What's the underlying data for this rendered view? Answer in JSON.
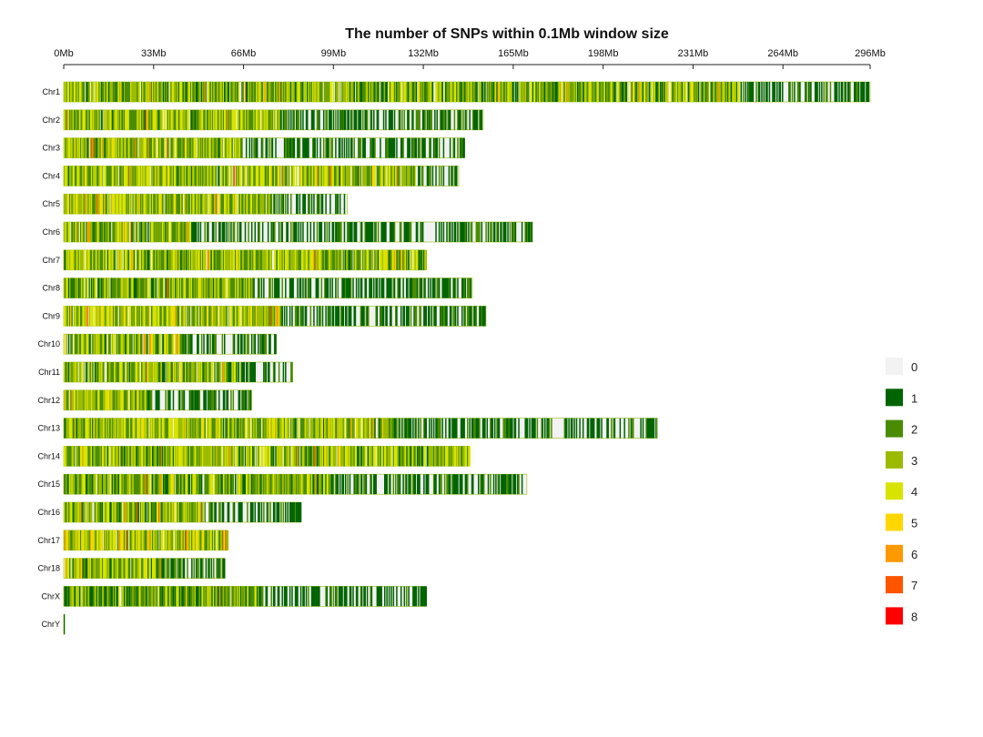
{
  "chart_data": {
    "type": "heatmap",
    "title": "The number of SNPs within 0.1Mb window size",
    "xlabel": "",
    "ylabel": "",
    "x_range_mb": [
      0,
      296
    ],
    "window_size_mb": 0.1,
    "axis_position": "top",
    "x_ticks": [
      {
        "value": 0,
        "label": "0Mb"
      },
      {
        "value": 33,
        "label": "33Mb"
      },
      {
        "value": 66,
        "label": "66Mb"
      },
      {
        "value": 99,
        "label": "99Mb"
      },
      {
        "value": 132,
        "label": "132Mb"
      },
      {
        "value": 165,
        "label": "165Mb"
      },
      {
        "value": 198,
        "label": "198Mb"
      },
      {
        "value": 231,
        "label": "231Mb"
      },
      {
        "value": 264,
        "label": "264Mb"
      },
      {
        "value": 296,
        "label": "296Mb"
      }
    ],
    "legend": {
      "placement": "right",
      "items": [
        {
          "value": 0,
          "label": "0",
          "color": "#f2f2f2"
        },
        {
          "value": 1,
          "label": "1",
          "color": "#006400"
        },
        {
          "value": 2,
          "label": "2",
          "color": "#4a8c00"
        },
        {
          "value": 3,
          "label": "3",
          "color": "#9bbb00"
        },
        {
          "value": 4,
          "label": "4",
          "color": "#d8e400"
        },
        {
          "value": 5,
          "label": "5",
          "color": "#ffd700"
        },
        {
          "value": 6,
          "label": "6",
          "color": "#ff9900"
        },
        {
          "value": 7,
          "label": "7",
          "color": "#ff5500"
        },
        {
          "value": 8,
          "label": "8",
          "color": "#ff0000"
        }
      ]
    },
    "chromosomes": [
      {
        "name": "Chr1",
        "length_mb": 296.0,
        "dense_until_mb": 248.0,
        "mean_density": 2.6
      },
      {
        "name": "Chr2",
        "length_mb": 154.0,
        "dense_until_mb": 79.0,
        "mean_density": 2.9
      },
      {
        "name": "Chr3",
        "length_mb": 147.0,
        "dense_until_mb": 65.0,
        "mean_density": 3.0
      },
      {
        "name": "Chr4",
        "length_mb": 145.0,
        "dense_until_mb": 129.0,
        "mean_density": 3.0
      },
      {
        "name": "Chr5",
        "length_mb": 104.0,
        "dense_until_mb": 76.0,
        "mean_density": 3.1
      },
      {
        "name": "Chr6",
        "length_mb": 172.0,
        "dense_until_mb": 47.0,
        "mean_density": 2.6
      },
      {
        "name": "Chr7",
        "length_mb": 133.0,
        "dense_until_mb": 133.0,
        "mean_density": 2.9
      },
      {
        "name": "Chr8",
        "length_mb": 150.0,
        "dense_until_mb": 69.0,
        "mean_density": 2.6
      },
      {
        "name": "Chr9",
        "length_mb": 155.0,
        "dense_until_mb": 80.0,
        "mean_density": 3.1
      },
      {
        "name": "Chr10",
        "length_mb": 78.0,
        "dense_until_mb": 43.0,
        "mean_density": 3.0
      },
      {
        "name": "Chr11",
        "length_mb": 84.0,
        "dense_until_mb": 65.0,
        "mean_density": 2.7
      },
      {
        "name": "Chr12",
        "length_mb": 69.0,
        "dense_until_mb": 30.0,
        "mean_density": 3.1
      },
      {
        "name": "Chr13",
        "length_mb": 218.0,
        "dense_until_mb": 121.0,
        "mean_density": 3.0
      },
      {
        "name": "Chr14",
        "length_mb": 149.0,
        "dense_until_mb": 149.0,
        "mean_density": 2.8
      },
      {
        "name": "Chr15",
        "length_mb": 170.0,
        "dense_until_mb": 98.0,
        "mean_density": 2.6
      },
      {
        "name": "Chr16",
        "length_mb": 87.0,
        "dense_until_mb": 51.0,
        "mean_density": 2.8
      },
      {
        "name": "Chr17",
        "length_mb": 60.0,
        "dense_until_mb": 60.0,
        "mean_density": 3.2
      },
      {
        "name": "Chr18",
        "length_mb": 59.0,
        "dense_until_mb": 36.0,
        "mean_density": 2.8
      },
      {
        "name": "ChrX",
        "length_mb": 133.0,
        "dense_until_mb": 73.0,
        "mean_density": 2.4
      },
      {
        "name": "ChrY",
        "length_mb": 0.3,
        "dense_until_mb": 0.0,
        "mean_density": 1.0
      }
    ]
  }
}
